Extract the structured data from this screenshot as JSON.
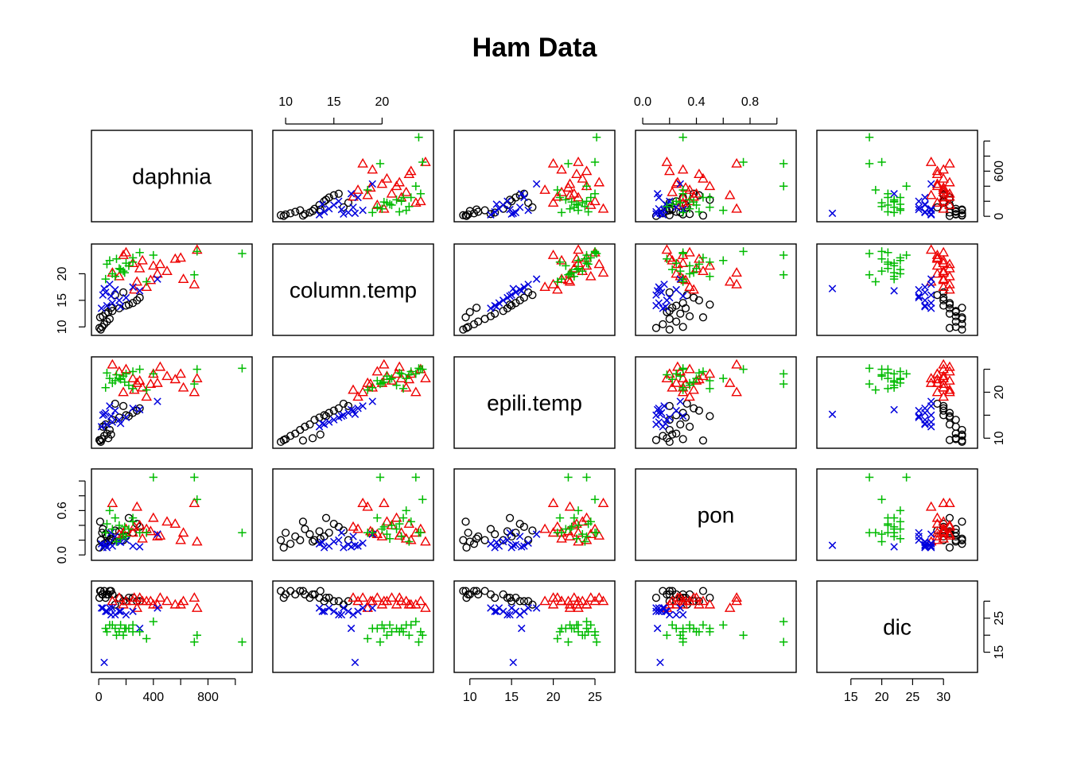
{
  "title": "Ham Data",
  "chart_data": {
    "type": "scatter",
    "variant": "pairs-matrix",
    "variables": [
      "daphnia",
      "column.temp",
      "epili.temp",
      "pon",
      "dic"
    ],
    "ranges": {
      "daphnia": [
        -30,
        1100
      ],
      "column.temp": [
        9,
        25
      ],
      "epili.temp": [
        8.5,
        27
      ],
      "pon": [
        -0.03,
        1.12
      ],
      "dic": [
        10,
        35
      ]
    },
    "ticks": {
      "daphnia": {
        "values": [
          0,
          200,
          400,
          600,
          800,
          1000
        ],
        "labels": [
          "0",
          "",
          "400",
          "",
          "800",
          ""
        ]
      },
      "daphnia_right": {
        "values": [
          0,
          200,
          400,
          600,
          800,
          1000
        ],
        "labels": [
          "0",
          "",
          "",
          "600",
          "",
          ""
        ]
      },
      "column.temp": {
        "values": [
          10,
          15,
          20
        ],
        "labels": [
          "10",
          "15",
          "20"
        ]
      },
      "epili.temp": {
        "values": [
          10,
          15,
          20,
          25
        ],
        "labels": [
          "10",
          "15",
          "20",
          "25"
        ]
      },
      "epili.temp_right": {
        "values": [
          10,
          15,
          20,
          25
        ],
        "labels": [
          "10",
          "",
          "20",
          ""
        ]
      },
      "pon": {
        "values": [
          0,
          0.2,
          0.4,
          0.6,
          0.8,
          1.0
        ],
        "labels": [
          "0.0",
          "",
          "0.4",
          "",
          "0.8",
          ""
        ]
      },
      "pon_left": {
        "values": [
          0,
          0.2,
          0.4,
          0.6,
          0.8,
          1.0
        ],
        "labels": [
          "0.0",
          "",
          "",
          "0.6",
          "",
          ""
        ]
      },
      "dic": {
        "values": [
          15,
          20,
          25,
          30
        ],
        "labels": [
          "15",
          "20",
          "25",
          "30"
        ]
      },
      "dic_right": {
        "values": [
          15,
          20,
          25,
          30
        ],
        "labels": [
          "15",
          "",
          "25",
          ""
        ]
      }
    },
    "groups": [
      {
        "marker": "circle",
        "color": "#000000",
        "points": [
          [
            15,
            9.5,
            9.2,
            0.2,
            33
          ],
          [
            25,
            10.0,
            9.8,
            0.3,
            32
          ],
          [
            40,
            10.5,
            10.5,
            0.15,
            33
          ],
          [
            60,
            11.0,
            11.0,
            0.25,
            32
          ],
          [
            80,
            11.5,
            11.8,
            0.2,
            33
          ],
          [
            5,
            9.8,
            9.6,
            0.1,
            31
          ],
          [
            30,
            12.0,
            12.5,
            0.35,
            32
          ],
          [
            50,
            12.5,
            13.0,
            0.28,
            31
          ],
          [
            100,
            13.0,
            14.0,
            0.2,
            32
          ],
          [
            150,
            13.5,
            14.5,
            0.32,
            31
          ],
          [
            200,
            14.0,
            15.0,
            0.25,
            30
          ],
          [
            250,
            14.5,
            15.5,
            0.3,
            31
          ],
          [
            280,
            15.0,
            16.0,
            0.42,
            30
          ],
          [
            300,
            15.5,
            16.5,
            0.38,
            30
          ],
          [
            120,
            16.0,
            17.5,
            0.33,
            29
          ],
          [
            180,
            16.5,
            17.0,
            0.2,
            30
          ],
          [
            220,
            14.2,
            14.8,
            0.5,
            31
          ],
          [
            10,
            11.8,
            9.5,
            0.45,
            33
          ],
          [
            70,
            12.8,
            10.0,
            0.18,
            32
          ],
          [
            90,
            13.6,
            10.8,
            0.22,
            33
          ]
        ]
      },
      {
        "marker": "triangle",
        "color": "#ee0000",
        "points": [
          [
            350,
            17.5,
            19.0,
            0.35,
            30
          ],
          [
            700,
            18.0,
            20.0,
            0.7,
            31
          ],
          [
            620,
            19.0,
            21.0,
            0.3,
            30
          ],
          [
            430,
            20.0,
            22.0,
            0.25,
            29
          ],
          [
            300,
            21.0,
            22.5,
            0.4,
            31
          ],
          [
            250,
            22.0,
            23.0,
            0.3,
            30
          ],
          [
            600,
            23.0,
            24.0,
            0.2,
            29
          ],
          [
            200,
            24.0,
            25.0,
            0.35,
            30
          ],
          [
            150,
            19.5,
            24.5,
            0.28,
            31
          ],
          [
            500,
            20.5,
            23.5,
            0.45,
            30
          ],
          [
            400,
            21.5,
            24.0,
            0.5,
            29
          ],
          [
            320,
            22.5,
            21.0,
            0.22,
            30
          ],
          [
            280,
            18.5,
            22.0,
            0.65,
            28
          ],
          [
            180,
            23.5,
            20.0,
            0.3,
            29
          ],
          [
            260,
            17.0,
            20.5,
            0.38,
            31
          ],
          [
            720,
            24.5,
            23.0,
            0.18,
            28
          ],
          [
            100,
            20.2,
            26.0,
            0.7,
            30
          ],
          [
            450,
            21.8,
            25.5,
            0.26,
            31
          ],
          [
            380,
            18.8,
            21.8,
            0.32,
            30
          ],
          [
            560,
            22.8,
            22.8,
            0.42,
            29
          ]
        ]
      },
      {
        "marker": "x",
        "color": "#0000dd",
        "points": [
          [
            20,
            13.5,
            12.5,
            0.15,
            28
          ],
          [
            60,
            14.0,
            13.0,
            0.1,
            27
          ],
          [
            100,
            14.5,
            13.5,
            0.12,
            28
          ],
          [
            150,
            15.0,
            14.0,
            0.18,
            27
          ],
          [
            200,
            15.5,
            14.5,
            0.2,
            26
          ],
          [
            30,
            16.0,
            15.0,
            0.1,
            28
          ],
          [
            50,
            16.5,
            15.5,
            0.14,
            27
          ],
          [
            120,
            17.0,
            16.0,
            0.25,
            26
          ],
          [
            250,
            17.5,
            16.5,
            0.12,
            27
          ],
          [
            80,
            18.0,
            17.0,
            0.16,
            28
          ],
          [
            430,
            19.0,
            18.0,
            0.28,
            28
          ],
          [
            40,
            17.2,
            15.2,
            0.13,
            12
          ],
          [
            160,
            13.8,
            13.2,
            0.17,
            27
          ],
          [
            90,
            15.8,
            14.8,
            0.3,
            26
          ],
          [
            300,
            16.8,
            16.2,
            0.11,
            22
          ]
        ]
      },
      {
        "marker": "plus",
        "color": "#00bb00",
        "points": [
          [
            50,
            19.0,
            21.0,
            0.3,
            22
          ],
          [
            100,
            20.0,
            22.0,
            0.35,
            23
          ],
          [
            150,
            21.0,
            23.0,
            0.4,
            21
          ],
          [
            200,
            22.0,
            24.0,
            0.25,
            22
          ],
          [
            250,
            23.0,
            24.5,
            0.45,
            23
          ],
          [
            300,
            24.0,
            25.0,
            0.3,
            21
          ],
          [
            120,
            19.5,
            22.5,
            0.5,
            22
          ],
          [
            180,
            20.5,
            23.5,
            0.28,
            20
          ],
          [
            220,
            21.5,
            21.5,
            0.35,
            22
          ],
          [
            80,
            22.5,
            23.0,
            0.6,
            23
          ],
          [
            400,
            23.5,
            24.0,
            1.05,
            24
          ],
          [
            720,
            24.2,
            25.0,
            0.75,
            20
          ],
          [
            350,
            18.5,
            20.5,
            0.3,
            19
          ],
          [
            160,
            20.8,
            22.8,
            0.22,
            23
          ],
          [
            60,
            21.8,
            24.2,
            0.42,
            21
          ],
          [
            130,
            22.8,
            23.8,
            0.18,
            20
          ],
          [
            1050,
            23.8,
            25.2,
            0.3,
            18
          ],
          [
            700,
            19.8,
            21.8,
            1.05,
            18
          ],
          [
            250,
            22.2,
            20.8,
            0.5,
            21
          ],
          [
            190,
            20.2,
            22.2,
            0.38,
            22
          ]
        ]
      }
    ]
  }
}
